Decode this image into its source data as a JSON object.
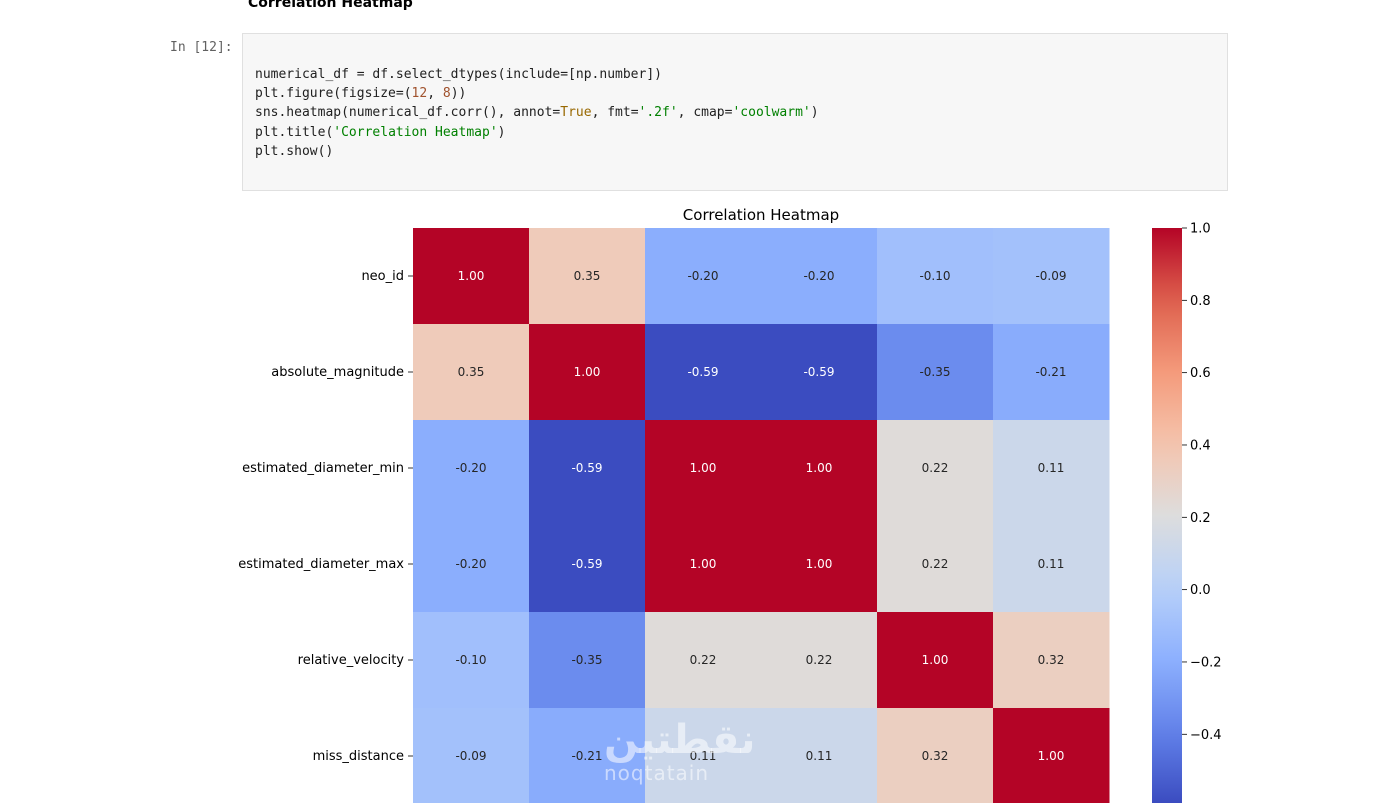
{
  "notebook": {
    "section_heading": "Correlation Heatmap",
    "cell_prompt": "In [12]:",
    "code_lines": [
      [
        {
          "t": "numerical_df = df.select_dtypes(include=[np.number])",
          "c": ""
        }
      ],
      [
        {
          "t": "plt.figure(figsize=(",
          "c": ""
        },
        {
          "t": "12",
          "c": "num"
        },
        {
          "t": ", ",
          "c": ""
        },
        {
          "t": "8",
          "c": "num"
        },
        {
          "t": "))",
          "c": ""
        }
      ],
      [
        {
          "t": "sns.heatmap(numerical_df.corr(), annot=",
          "c": ""
        },
        {
          "t": "True",
          "c": "kw"
        },
        {
          "t": ", fmt=",
          "c": ""
        },
        {
          "t": "'.2f'",
          "c": "str"
        },
        {
          "t": ", cmap=",
          "c": ""
        },
        {
          "t": "'coolwarm'",
          "c": "str"
        },
        {
          "t": ")",
          "c": ""
        }
      ],
      [
        {
          "t": "plt.title(",
          "c": ""
        },
        {
          "t": "'Correlation Heatmap'",
          "c": "str"
        },
        {
          "t": ")",
          "c": ""
        }
      ],
      [
        {
          "t": "plt.show()",
          "c": ""
        }
      ]
    ]
  },
  "chart_data": {
    "type": "heatmap",
    "title": "Correlation Heatmap",
    "rows": [
      "neo_id",
      "absolute_magnitude",
      "estimated_diameter_min",
      "estimated_diameter_max",
      "relative_velocity",
      "miss_distance"
    ],
    "values": [
      [
        1.0,
        0.35,
        -0.2,
        -0.2,
        -0.1,
        -0.09
      ],
      [
        0.35,
        1.0,
        -0.59,
        -0.59,
        -0.35,
        -0.21
      ],
      [
        -0.2,
        -0.59,
        1.0,
        1.0,
        0.22,
        0.11
      ],
      [
        -0.2,
        -0.59,
        1.0,
        1.0,
        0.22,
        0.11
      ],
      [
        -0.1,
        -0.35,
        0.22,
        0.22,
        1.0,
        0.32
      ],
      [
        -0.09,
        -0.21,
        0.11,
        0.11,
        0.32,
        1.0
      ]
    ],
    "colorbar": {
      "min": -0.59,
      "max": 1.0,
      "ticks": [
        "1.0",
        "0.8",
        "0.6",
        "0.4",
        "0.2",
        "0.0",
        "−0.2",
        "−0.4"
      ],
      "tick_values": [
        1.0,
        0.8,
        0.6,
        0.4,
        0.2,
        0.0,
        -0.2,
        -0.4
      ]
    },
    "colormap": "coolwarm"
  },
  "watermark": {
    "line1": "نقطتين",
    "line2": "noqtatain"
  }
}
